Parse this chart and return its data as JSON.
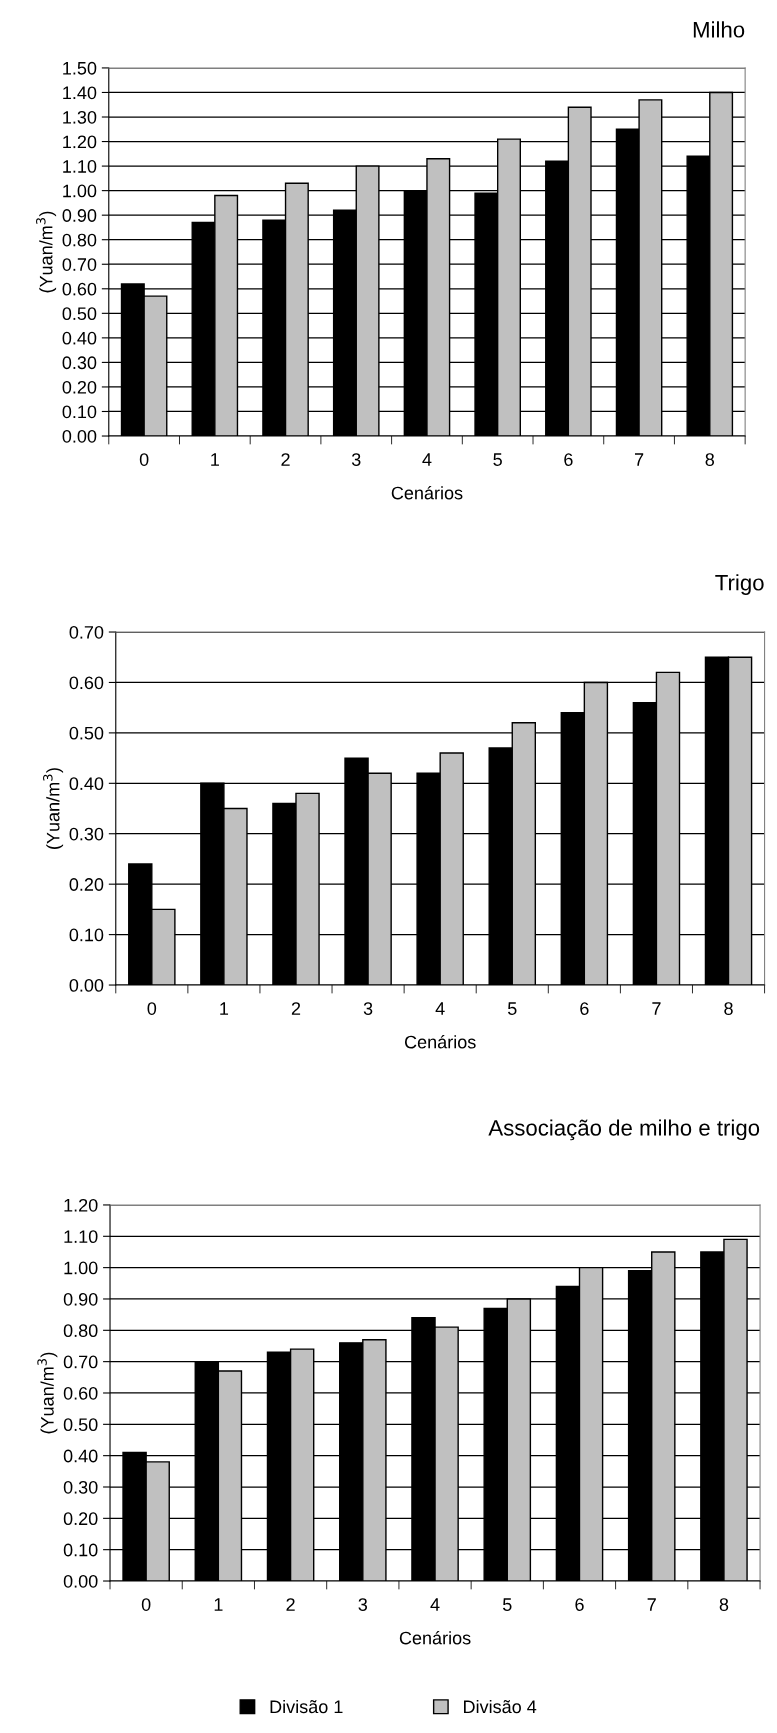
{
  "chart_data": [
    {
      "type": "bar",
      "title": "Milho",
      "xlabel": "Cenários",
      "ylabel": "(Yuan/m$^{3}$)",
      "categories": [
        "0",
        "1",
        "2",
        "3",
        "4",
        "5",
        "6",
        "7",
        "8"
      ],
      "series": [
        {
          "color": "#000000",
          "values": [
            0.62,
            0.87,
            0.88,
            0.92,
            1.0,
            0.99,
            1.12,
            1.25,
            1.14
          ]
        },
        {
          "color": "#c0c0c0",
          "values": [
            0.57,
            0.98,
            1.03,
            1.1,
            1.13,
            1.21,
            1.34,
            1.37,
            1.4
          ]
        }
      ],
      "ylim": [
        0,
        1.5
      ],
      "yticks": [
        {
          "value": 0,
          "label": "0.00"
        },
        {
          "value": 0.1,
          "label": "0.10"
        },
        {
          "value": 0.2,
          "label": "0.20"
        },
        {
          "value": 0.3,
          "label": "0.30"
        },
        {
          "value": 0.4,
          "label": "0.40"
        },
        {
          "value": 0.5,
          "label": "0.50"
        },
        {
          "value": 0.6,
          "label": "0.60"
        },
        {
          "value": 0.7,
          "label": "0.70"
        },
        {
          "value": 0.8,
          "label": "0.80"
        },
        {
          "value": 0.9,
          "label": "0.90"
        },
        {
          "value": 1.0,
          "label": "1.00"
        },
        {
          "value": 1.1,
          "label": "1.10"
        },
        {
          "value": 1.2,
          "label": "1.20"
        },
        {
          "value": 1.3,
          "label": "1.30"
        },
        {
          "value": 1.4,
          "label": "1.40"
        },
        {
          "value": 1.5,
          "label": "1.50"
        }
      ],
      "grid": "y"
    },
    {
      "type": "bar",
      "title": "Trigo",
      "xlabel": "Cenários",
      "ylabel": "(Yuan/m$^{3}$)",
      "categories": [
        "0",
        "1",
        "2",
        "3",
        "4",
        "5",
        "6",
        "7",
        "8"
      ],
      "series": [
        {
          "color": "#000000",
          "values": [
            0.24,
            0.4,
            0.36,
            0.45,
            0.42,
            0.47,
            0.54,
            0.56,
            0.65
          ]
        },
        {
          "color": "#c0c0c0",
          "values": [
            0.15,
            0.35,
            0.38,
            0.42,
            0.46,
            0.52,
            0.6,
            0.62,
            0.65
          ]
        }
      ],
      "ylim": [
        0,
        0.7
      ],
      "yticks": [
        {
          "value": 0,
          "label": "0.00"
        },
        {
          "value": 0.1,
          "label": "0.10"
        },
        {
          "value": 0.2,
          "label": "0.20"
        },
        {
          "value": 0.3,
          "label": "0.30"
        },
        {
          "value": 0.4,
          "label": "0.40"
        },
        {
          "value": 0.5,
          "label": "0.50"
        },
        {
          "value": 0.6,
          "label": "0.60"
        },
        {
          "value": 0.7,
          "label": "0.70"
        }
      ],
      "grid": "y"
    },
    {
      "type": "bar",
      "title": "Associação de milho e trigo",
      "xlabel": "Cenários",
      "ylabel": "(Yuan/m$^{3}$)",
      "categories": [
        "0",
        "1",
        "2",
        "3",
        "4",
        "5",
        "6",
        "7",
        "8"
      ],
      "series": [
        {
          "name": "Divisão 1",
          "color": "#000000",
          "values": [
            0.41,
            0.7,
            0.73,
            0.76,
            0.84,
            0.87,
            0.94,
            0.99,
            1.05
          ]
        },
        {
          "name": "Divisão 4",
          "color": "#c0c0c0",
          "values": [
            0.38,
            0.67,
            0.74,
            0.77,
            0.81,
            0.9,
            1.0,
            1.05,
            1.09
          ]
        }
      ],
      "ylim": [
        0,
        1.2
      ],
      "yticks": [
        {
          "value": 0,
          "label": "0.00"
        },
        {
          "value": 0.1,
          "label": "0.10"
        },
        {
          "value": 0.2,
          "label": "0.20"
        },
        {
          "value": 0.3,
          "label": "0.30"
        },
        {
          "value": 0.4,
          "label": "0.40"
        },
        {
          "value": 0.5,
          "label": "0.50"
        },
        {
          "value": 0.6,
          "label": "0.60"
        },
        {
          "value": 0.7,
          "label": "0.70"
        },
        {
          "value": 0.8,
          "label": "0.80"
        },
        {
          "value": 0.9,
          "label": "0.90"
        },
        {
          "value": 1.0,
          "label": "1.00"
        },
        {
          "value": 1.1,
          "label": "1.10"
        },
        {
          "value": 1.2,
          "label": "1.20"
        }
      ],
      "grid": "y",
      "legend": "bottom"
    }
  ]
}
